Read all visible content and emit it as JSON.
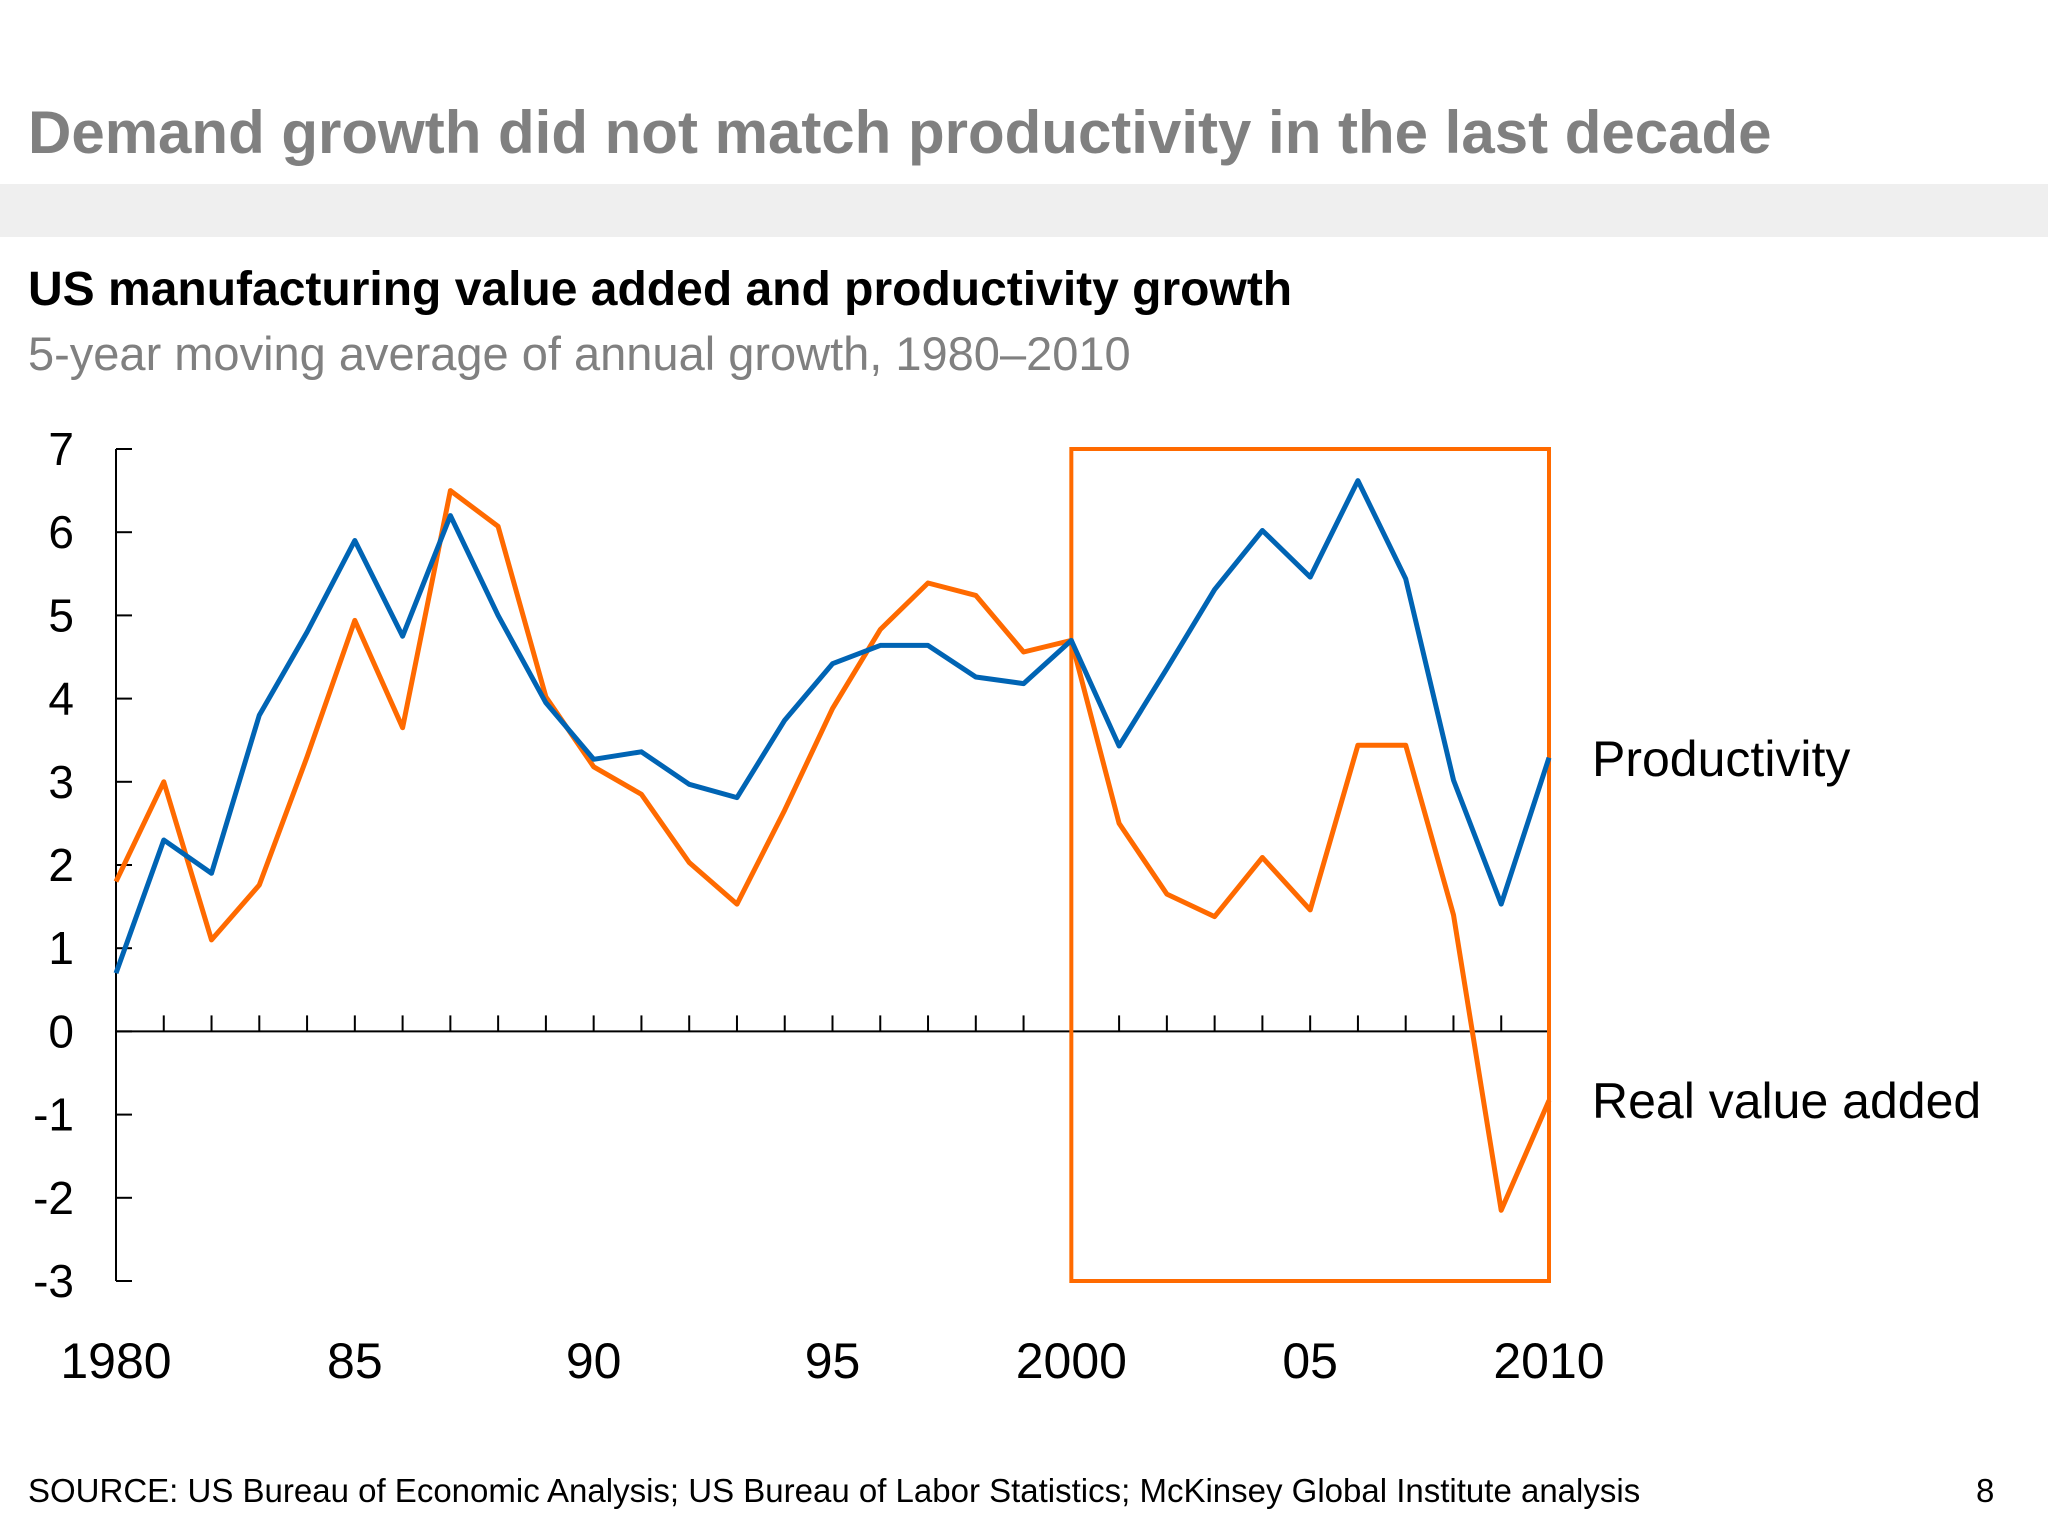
{
  "header": {
    "title": "Demand growth did not match productivity in the last decade"
  },
  "footer": {
    "source": "SOURCE: US Bureau of Economic Analysis; US Bureau of Labor Statistics; McKinsey Global Institute analysis",
    "page_number": "8"
  },
  "chart_data": {
    "type": "line",
    "title": "US manufacturing value added and productivity growth",
    "subtitle": "5-year moving average of annual growth, 1980–2010",
    "xlabel": "",
    "ylabel": "",
    "xlim": [
      1980,
      2010
    ],
    "ylim": [
      -3,
      7
    ],
    "y_ticks": [
      "7",
      "6",
      "5",
      "4",
      "3",
      "2",
      "1",
      "0",
      "-1",
      "-2",
      "-3"
    ],
    "x_tick_labels": [
      {
        "x": 1980,
        "label": "1980"
      },
      {
        "x": 1985,
        "label": "85"
      },
      {
        "x": 1990,
        "label": "90"
      },
      {
        "x": 1995,
        "label": "95"
      },
      {
        "x": 2000,
        "label": "2000"
      },
      {
        "x": 2005,
        "label": "05"
      },
      {
        "x": 2010,
        "label": "2010"
      }
    ],
    "grid": false,
    "legend": "inline-right",
    "highlight_range": [
      2000,
      2010
    ],
    "highlight_color": "#FF6A00",
    "x": [
      1980,
      1981,
      1982,
      1983,
      1984,
      1985,
      1986,
      1987,
      1988,
      1989,
      1990,
      1991,
      1992,
      1993,
      1994,
      1995,
      1996,
      1997,
      1998,
      1999,
      2000,
      2001,
      2002,
      2003,
      2004,
      2005,
      2006,
      2007,
      2008,
      2009,
      2010
    ],
    "series": [
      {
        "name": "Productivity",
        "color": "#0064B4",
        "values": [
          0.7,
          2.3,
          1.9,
          3.8,
          4.8,
          5.9,
          4.75,
          6.2,
          5.0,
          3.95,
          3.27,
          3.36,
          2.97,
          2.81,
          3.74,
          4.42,
          4.64,
          4.64,
          4.26,
          4.18,
          4.7,
          3.43,
          4.36,
          5.31,
          6.02,
          5.46,
          6.62,
          5.44,
          3.02,
          1.53,
          3.29
        ]
      },
      {
        "name": "Real value added",
        "color": "#FF6A00",
        "values": [
          1.8,
          3.0,
          1.1,
          1.76,
          3.3,
          4.94,
          3.65,
          6.5,
          6.07,
          4.02,
          3.18,
          2.85,
          2.03,
          1.53,
          2.66,
          3.88,
          4.83,
          5.39,
          5.24,
          4.56,
          4.7,
          2.5,
          1.65,
          1.38,
          2.09,
          1.46,
          3.44,
          3.44,
          1.4,
          -2.15,
          -0.83
        ]
      }
    ]
  }
}
